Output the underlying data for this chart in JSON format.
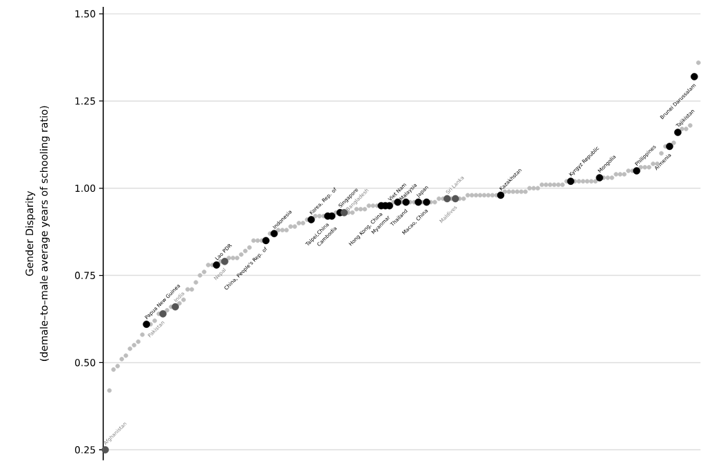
{
  "chart_data": {
    "type": "scatter",
    "ylabel": "Gender Disparity",
    "annotations": [
      "(demale–to–male average years of schooling ratio)"
    ],
    "categories": [
      null,
      null,
      null,
      null,
      null,
      null,
      null,
      null,
      null,
      null,
      null,
      null,
      null,
      null,
      null,
      null,
      null,
      null,
      null,
      null,
      null,
      null,
      null,
      null,
      null,
      null,
      null,
      null,
      null,
      null,
      null,
      null,
      null,
      null,
      null,
      null,
      null,
      null,
      null,
      null,
      null,
      null,
      null,
      null,
      null,
      null,
      null,
      null,
      null,
      null,
      null,
      null,
      null,
      null,
      null,
      null,
      null,
      null,
      null,
      null,
      null,
      null,
      null,
      null,
      null,
      null,
      null,
      null,
      null,
      null,
      null,
      null,
      null,
      null,
      null,
      null,
      null,
      null,
      null,
      null,
      null,
      null,
      null,
      null,
      null,
      null,
      null,
      null,
      null,
      null,
      null,
      null,
      null,
      null,
      null,
      null,
      null,
      null,
      null,
      null,
      null,
      null,
      null,
      null,
      null,
      null,
      null,
      null,
      null,
      null,
      null,
      null,
      null,
      null,
      null,
      null,
      null,
      null,
      null,
      null,
      null,
      null,
      null,
      null,
      null,
      null,
      null,
      null,
      null,
      null,
      null,
      null,
      null,
      null,
      null,
      null,
      null,
      null,
      null,
      null,
      null,
      null,
      null,
      null,
      null
    ],
    "ylim": [
      0.22,
      1.52
    ],
    "yticks": [
      {
        "value": 0.25,
        "label": "0.25"
      },
      {
        "value": 0.5,
        "label": "0.50"
      },
      {
        "value": 0.75,
        "label": "0.75"
      },
      {
        "value": 1.0,
        "label": "1.00"
      },
      {
        "value": 1.25,
        "label": "1.25"
      },
      {
        "value": 1.5,
        "label": "1.50"
      }
    ],
    "tick_labels": "y",
    "grid": "y",
    "marker": "circle",
    "series": [
      {
        "color": "#bdbdbd",
        "values": [
          null,
          0.42,
          0.48,
          0.49,
          0.51,
          0.52,
          0.54,
          0.55,
          0.56,
          0.58,
          null,
          0.61,
          0.62,
          0.64,
          null,
          0.65,
          0.66,
          null,
          0.67,
          0.68,
          0.71,
          0.71,
          0.73,
          0.75,
          0.76,
          0.78,
          0.78,
          null,
          0.79,
          null,
          0.8,
          0.8,
          0.8,
          0.81,
          0.82,
          0.83,
          0.85,
          0.85,
          0.85,
          null,
          0.87,
          null,
          0.88,
          0.88,
          0.88,
          0.89,
          0.89,
          0.9,
          0.9,
          0.91,
          null,
          0.92,
          0.92,
          0.92,
          null,
          null,
          0.93,
          null,
          null,
          0.93,
          0.93,
          0.94,
          0.94,
          0.94,
          0.95,
          0.95,
          0.95,
          null,
          null,
          null,
          0.96,
          null,
          0.96,
          null,
          0.96,
          0.96,
          null,
          0.96,
          null,
          0.96,
          0.96,
          0.97,
          0.97,
          null,
          0.97,
          null,
          0.97,
          0.97,
          0.98,
          0.98,
          0.98,
          0.98,
          0.98,
          0.98,
          0.98,
          0.98,
          null,
          0.99,
          0.99,
          0.99,
          0.99,
          0.99,
          0.99,
          1.0,
          1.0,
          1.0,
          1.01,
          1.01,
          1.01,
          1.01,
          1.01,
          1.01,
          1.02,
          null,
          1.02,
          1.02,
          1.02,
          1.02,
          1.02,
          1.02,
          null,
          1.03,
          1.03,
          1.03,
          1.04,
          1.04,
          1.04,
          1.05,
          1.05,
          null,
          1.06,
          1.06,
          1.06,
          1.07,
          1.07,
          1.1,
          1.12,
          null,
          1.13,
          null,
          1.17,
          1.17,
          1.18,
          null,
          1.36
        ]
      },
      {
        "color": "#000000",
        "values": [
          null,
          null,
          null,
          null,
          null,
          null,
          null,
          null,
          null,
          null,
          0.61,
          null,
          null,
          null,
          null,
          null,
          null,
          null,
          null,
          null,
          null,
          null,
          null,
          null,
          null,
          null,
          null,
          0.78,
          null,
          null,
          null,
          null,
          null,
          null,
          null,
          null,
          null,
          null,
          null,
          0.85,
          null,
          0.87,
          null,
          null,
          null,
          null,
          null,
          null,
          null,
          null,
          0.91,
          null,
          null,
          null,
          0.92,
          0.92,
          null,
          0.93,
          null,
          null,
          null,
          null,
          null,
          null,
          null,
          null,
          null,
          0.95,
          0.95,
          0.95,
          null,
          0.96,
          null,
          0.96,
          null,
          null,
          0.96,
          null,
          0.96,
          null,
          null,
          null,
          null,
          null,
          null,
          null,
          null,
          null,
          null,
          null,
          null,
          null,
          null,
          null,
          null,
          null,
          0.98,
          null,
          null,
          null,
          null,
          null,
          null,
          null,
          null,
          null,
          null,
          null,
          null,
          null,
          null,
          null,
          null,
          1.02,
          null,
          null,
          null,
          null,
          null,
          null,
          1.03,
          null,
          null,
          null,
          null,
          null,
          null,
          null,
          null,
          1.05,
          null,
          null,
          null,
          null,
          null,
          null,
          null,
          1.12,
          null,
          1.16,
          null,
          null,
          null,
          1.32,
          null
        ],
        "value_labels": [
          null,
          null,
          null,
          null,
          null,
          null,
          null,
          null,
          null,
          null,
          "Papua New Guinea",
          null,
          null,
          null,
          null,
          null,
          null,
          null,
          null,
          null,
          null,
          null,
          null,
          null,
          null,
          null,
          null,
          "Lao PDR",
          null,
          null,
          null,
          null,
          null,
          null,
          null,
          null,
          null,
          null,
          null,
          "China, People's Rep. of",
          null,
          "Indonesia",
          null,
          null,
          null,
          null,
          null,
          null,
          null,
          null,
          "Korea, Rep. of",
          null,
          null,
          null,
          "Taipei,China",
          "Cambodia",
          null,
          "Singapore",
          null,
          null,
          null,
          null,
          null,
          null,
          null,
          null,
          null,
          "Hong Kong, China",
          "Myanmar",
          "Viet Nam",
          null,
          "Malaysia",
          null,
          "Thailand",
          null,
          null,
          "Japan",
          null,
          "Macao, China",
          null,
          null,
          null,
          null,
          null,
          null,
          null,
          null,
          null,
          null,
          null,
          null,
          null,
          null,
          null,
          null,
          null,
          "Kazakhstan",
          null,
          null,
          null,
          null,
          null,
          null,
          null,
          null,
          null,
          null,
          null,
          null,
          null,
          null,
          null,
          null,
          "Kyrgyz Republic",
          null,
          null,
          null,
          null,
          null,
          null,
          "Mongolia",
          null,
          null,
          null,
          null,
          null,
          null,
          null,
          null,
          "Philippines",
          null,
          null,
          null,
          null,
          null,
          null,
          null,
          "Armenia",
          null,
          "Tajikistan",
          null,
          null,
          null,
          "Brunei Darussalam",
          null
        ]
      },
      {
        "color": "#555555",
        "values": [
          0.25,
          null,
          null,
          null,
          null,
          null,
          null,
          null,
          null,
          null,
          null,
          null,
          null,
          null,
          0.64,
          null,
          null,
          0.66,
          null,
          null,
          null,
          null,
          null,
          null,
          null,
          null,
          null,
          null,
          null,
          0.79,
          null,
          null,
          null,
          null,
          null,
          null,
          null,
          null,
          null,
          null,
          null,
          null,
          null,
          null,
          null,
          null,
          null,
          null,
          null,
          null,
          null,
          null,
          null,
          null,
          null,
          null,
          null,
          null,
          0.93,
          null,
          null,
          null,
          null,
          null,
          null,
          null,
          null,
          null,
          null,
          null,
          null,
          null,
          null,
          null,
          null,
          null,
          null,
          null,
          null,
          null,
          null,
          null,
          null,
          0.97,
          null,
          0.97,
          null,
          null,
          null,
          null,
          null,
          null,
          null,
          null,
          null,
          null,
          null,
          null,
          null,
          null,
          null,
          null,
          null,
          null,
          null,
          null,
          null,
          null,
          null,
          null,
          null,
          null,
          null,
          null,
          null,
          null,
          null,
          null,
          null,
          null,
          null,
          null,
          null,
          null,
          null,
          null,
          null,
          null,
          null,
          null,
          null,
          null,
          null,
          null,
          null,
          null,
          null,
          null,
          null,
          null,
          null,
          null,
          null,
          null,
          null
        ],
        "value_labels": [
          "Afghanistan",
          null,
          null,
          null,
          null,
          null,
          null,
          null,
          null,
          null,
          null,
          null,
          null,
          null,
          "Pakistan",
          null,
          null,
          "India",
          null,
          null,
          null,
          null,
          null,
          null,
          null,
          null,
          null,
          null,
          null,
          "Nepal",
          null,
          null,
          null,
          null,
          null,
          null,
          null,
          null,
          null,
          null,
          null,
          null,
          null,
          null,
          null,
          null,
          null,
          null,
          null,
          null,
          null,
          null,
          null,
          null,
          null,
          null,
          null,
          null,
          "Bangladesh",
          null,
          null,
          null,
          null,
          null,
          null,
          null,
          null,
          null,
          null,
          null,
          null,
          null,
          null,
          null,
          null,
          null,
          null,
          null,
          null,
          null,
          null,
          null,
          null,
          "Sri Lanka",
          null,
          "Maldives",
          null,
          null,
          null,
          null,
          null,
          null,
          null,
          null,
          null,
          null,
          null,
          null,
          null,
          null,
          null,
          null,
          null,
          null,
          null,
          null,
          null,
          null,
          null,
          null,
          null,
          null,
          null,
          null,
          null,
          null,
          null,
          null,
          null,
          null,
          null,
          null,
          null,
          null,
          null,
          null,
          null,
          null,
          null,
          null,
          null,
          null,
          null,
          null,
          null,
          null,
          null,
          null,
          null,
          null,
          null,
          null,
          null,
          null,
          null
        ]
      }
    ]
  }
}
